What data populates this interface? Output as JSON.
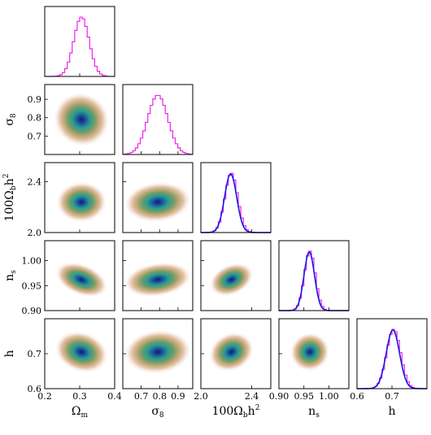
{
  "chart_data": {
    "type": "corner",
    "parameters": [
      {
        "name": "Ωm",
        "symbol": "Ω",
        "sub": "m",
        "sup": "",
        "range": [
          0.2,
          0.4
        ],
        "ticks": [
          "0.2",
          "0.3",
          "0.4"
        ],
        "mean": 0.305,
        "sigma": 0.022,
        "show_x_ticks": true,
        "show_y_ticks": false
      },
      {
        "name": "σ8",
        "symbol": "σ",
        "sub": "8",
        "sup": "",
        "range": [
          0.6,
          0.98
        ],
        "ticks": [
          "0.7",
          "0.8",
          "0.9"
        ],
        "mean": 0.79,
        "sigma": 0.055,
        "show_x_ticks": true,
        "show_y_ticks": true
      },
      {
        "name": "100Ωbh²",
        "symbol": "100Ω",
        "sub": "b",
        "sup": "2",
        "prefix_after": "h",
        "range": [
          2.0,
          2.55
        ],
        "ticks": [
          "2.0",
          "2.4"
        ],
        "mean": 2.24,
        "sigma": 0.05,
        "show_x_ticks": true,
        "show_y_ticks": true
      },
      {
        "name": "ns",
        "symbol": "n",
        "sub": "s",
        "sup": "",
        "range": [
          0.9,
          1.04
        ],
        "ticks": [
          "0.90",
          "0.95",
          "1.00"
        ],
        "mean": 0.962,
        "sigma": 0.011,
        "show_x_ticks": true,
        "show_y_ticks": true
      },
      {
        "name": "h",
        "symbol": "h",
        "sub": "",
        "sup": "",
        "range": [
          0.6,
          0.8
        ],
        "ticks": [
          "0.6",
          "0.7"
        ],
        "mean": 0.705,
        "sigma": 0.02,
        "show_x_ticks": true,
        "show_y_ticks": true
      }
    ],
    "tick_values": [
      [
        0.2,
        0.3,
        0.4
      ],
      [
        0.7,
        0.8,
        0.9
      ],
      [
        2.0,
        2.4
      ],
      [
        0.9,
        0.95,
        1.0
      ],
      [
        0.6,
        0.7
      ]
    ],
    "y_tick_values": [
      [],
      [
        0.7,
        0.8,
        0.9
      ],
      [
        2.0,
        2.4
      ],
      [
        0.9,
        0.95,
        1.0
      ],
      [
        0.6,
        0.7
      ]
    ],
    "y_tick_labels": [
      [],
      [
        "0.7",
        "0.8",
        "0.9"
      ],
      [
        "2.0",
        "2.4"
      ],
      [
        "0.90",
        "0.95",
        "1.00"
      ],
      [
        "0.6",
        "0.7"
      ]
    ],
    "correlations": {
      "1-0": -0.55,
      "2-0": 0.05,
      "2-1": 0.1,
      "3-0": -0.4,
      "3-1": 0.15,
      "3-2": 0.45,
      "4-0": -0.35,
      "4-1": 0.1,
      "4-2": 0.5,
      "4-3": 0.45
    },
    "diagonal_series": [
      {
        "name": "",
        "color": "#ee22ee",
        "style": "step"
      },
      {
        "name": "",
        "color": "#1a1ae0",
        "style": "line",
        "panels": [
          2,
          3,
          4
        ]
      }
    ],
    "colors": {
      "hist_magenta": "#ee22ee",
      "gaussian_blue": "#1a1ae0",
      "density_levels": [
        "#f7ece6",
        "#e4c3a8",
        "#b9a672",
        "#6d9c6a",
        "#2a9d8f",
        "#1f5fa0",
        "#0a1c6a"
      ]
    },
    "grid": false
  }
}
